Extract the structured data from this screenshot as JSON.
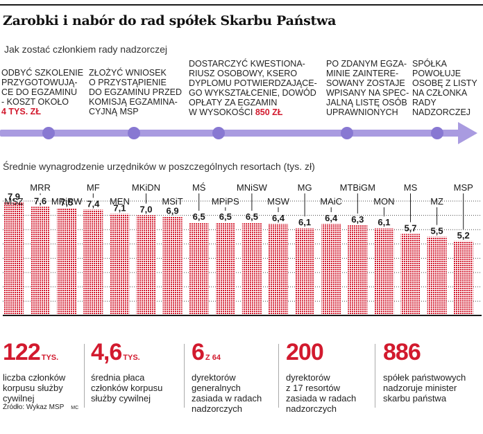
{
  "title": "Zarobki i nabór do rad spółek Skarbu Państwa",
  "subtitle": "Jak zostać członkiem rady nadzorczej",
  "steps": [
    {
      "text": "ODBYĆ SZKOLENIE\nPRZYGOTOWUJĄ-\nCE DO EGZAMINU\n- KOSZT OKOŁO\n",
      "highlight": "4 TYS. ZŁ"
    },
    {
      "text": "ZŁOŻYĆ WNIOSEK\nO PRZYSTĄPIENIE\nDO EGZAMINU PRZED\nKOMISJĄ EGZAMINA-\nCYJNĄ MSP",
      "highlight": ""
    },
    {
      "text": "DOSTARCZYĆ KWESTIONA-\nRIUSZ OSOBOWY, KSERO\nDYPLOMU POTWIERDZAJĄCE-\nGO WYKSZTAŁCENIE, DOWÓD\nOPŁATY ZA EGZAMIN\nW WYSOKOŚCI ",
      "highlight": "850 ZŁ"
    },
    {
      "text": "PO ZDANYM EGZA-\nMINIE  ZAINTERE-\nSOWANY ZOSTAJE\nWPISANY NA SPEC-\nJALNĄ LISTĘ OSÓB\nUPRAWNIONYCH",
      "highlight": ""
    },
    {
      "text": "SPÓŁKA\nPOWOŁUJE\nOSOBĘ Z LISTY\nNA CZŁONKA\nRADY\nNADZORCZEJ",
      "highlight": ""
    }
  ],
  "colors": {
    "accent": "#d21a2e",
    "timeline": "#a99be0",
    "timeline_dot": "#8878d2"
  },
  "chart_data": {
    "type": "bar",
    "title": "Średnie wynagrodzenie urzędników w poszczególnych resortach (tys. zł)",
    "categories": [
      "MSZ",
      "MRR",
      "MRiRW",
      "MF",
      "MEN",
      "MKiDN",
      "MSiT",
      "MŚ",
      "MPiPS",
      "MNiSW",
      "MSW",
      "MG",
      "MAiC",
      "MTBiGM",
      "MON",
      "MS",
      "MZ",
      "MSP"
    ],
    "values": [
      7.9,
      7.6,
      7.5,
      7.4,
      7.1,
      7.0,
      6.9,
      6.5,
      6.5,
      6.5,
      6.4,
      6.1,
      6.4,
      6.3,
      6.1,
      5.7,
      5.5,
      5.2
    ],
    "labels": [
      "7,9",
      "7,6",
      "7,5",
      "7,4",
      "7,1",
      "7,0",
      "6,9",
      "6,5",
      "6,5",
      "6,5",
      "6,4",
      "6,1",
      "6,4",
      "6,3",
      "6,1",
      "5,7",
      "5,5",
      "5,2"
    ],
    "ylim": [
      0,
      8
    ],
    "grid": true
  },
  "stats": [
    {
      "value": "122",
      "unit": "TYS.",
      "desc": "liczba członków\nkorpusu służby\ncywilnej"
    },
    {
      "value": "4,6",
      "unit": "TYS.",
      "desc": "średnia płaca\nczłonków korpusu\nsłużby cywilnej"
    },
    {
      "value": "6",
      "unit": "Z 64",
      "desc": "dyrektorów\ngeneralnych\nzasiada w radach\nnadzorczych"
    },
    {
      "value": "200",
      "unit": "",
      "desc": "dyrektorów\nz 17 resortów\nzasiada w radach\nnadzorczych"
    },
    {
      "value": "886",
      "unit": "",
      "desc": "spółek państwowych\nnadzoruje minister\nskarbu państwa"
    }
  ],
  "source": "Źródło: Wykaz MSP",
  "source_code": "MC"
}
